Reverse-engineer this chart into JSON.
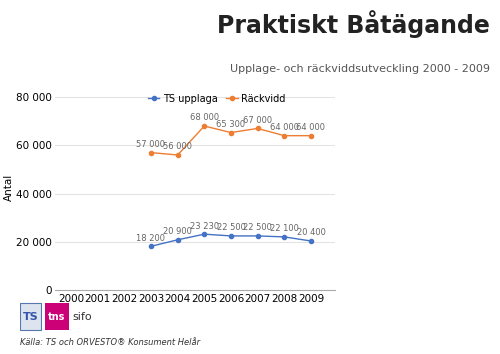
{
  "title": "Praktiskt Båtägande",
  "subtitle": "Upplage- och räckviddsutveckling 2000 - 2009",
  "source_note": "Källa: TS och ORVESTO® Konsument Helår",
  "years_upplage": [
    2003,
    2004,
    2005,
    2006,
    2007,
    2008,
    2009
  ],
  "years_rackvidd": [
    2003,
    2004,
    2005,
    2006,
    2007,
    2008,
    2009
  ],
  "upplage_values": [
    18200,
    20900,
    23230,
    22500,
    22500,
    22100,
    20400
  ],
  "rackvidd_values": [
    57000,
    56000,
    68000,
    65300,
    67000,
    64000,
    64000
  ],
  "upplage_labels": [
    "18 200",
    "20 900",
    "23 230",
    "22 500",
    "22 500",
    "22 100",
    "20 400"
  ],
  "rackvidd_labels": [
    "57 000",
    "56 000",
    "68 000",
    "65 300",
    "67 000",
    "64 000",
    "64 000"
  ],
  "upplage_color": "#4472C4",
  "rackvidd_color": "#ED7D31",
  "legend_upplage": "TS upplaga",
  "legend_rackvidd": "Räckvidd",
  "ylabel": "Antal",
  "xlim": [
    1999.4,
    2009.9
  ],
  "ylim": [
    0,
    85000
  ],
  "yticks": [
    0,
    20000,
    40000,
    60000,
    80000
  ],
  "ytick_labels": [
    "0",
    "20 000",
    "40 000",
    "60 000",
    "80 000"
  ],
  "xticks": [
    2000,
    2001,
    2002,
    2003,
    2004,
    2005,
    2006,
    2007,
    2008,
    2009
  ],
  "background_color": "#ffffff",
  "plot_bg_color": "#ffffff",
  "grid_color": "#dddddd",
  "title_fontsize": 17,
  "subtitle_fontsize": 8,
  "label_fontsize": 6,
  "axis_fontsize": 7.5,
  "legend_fontsize": 7
}
